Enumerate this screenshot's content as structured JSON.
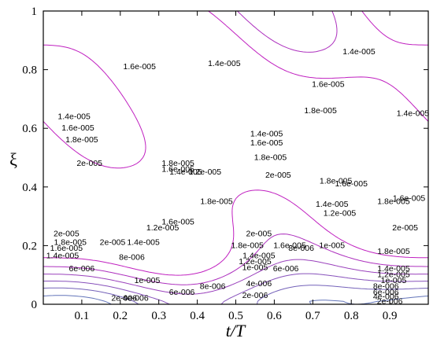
{
  "chart_data": {
    "type": "contour",
    "title": "",
    "xlabel": "t/T",
    "ylabel": "ξ",
    "xlim": [
      0,
      1
    ],
    "ylim": [
      0,
      1
    ],
    "x_ticks": [
      "0.1",
      "0.2",
      "0.3",
      "0.4",
      "0.5",
      "0.6",
      "0.7",
      "0.8",
      "0.9"
    ],
    "x_tick_values": [
      0.1,
      0.2,
      0.3,
      0.4,
      0.5,
      0.6,
      0.7,
      0.8,
      0.9
    ],
    "y_ticks": [
      "0",
      "0.2",
      "0.4",
      "0.6",
      "0.8",
      "1"
    ],
    "y_tick_values": [
      0,
      0.2,
      0.4,
      0.6,
      0.8,
      1
    ],
    "colors": {
      "high": "#c020c0",
      "mid": "#6a6ab8",
      "low": "#20c0c0",
      "frame": "#000000"
    },
    "contour_labels": [
      {
        "text": "1.6e-005",
        "x": 0.25,
        "y": 0.81
      },
      {
        "text": "1.4e-005",
        "x": 0.47,
        "y": 0.82
      },
      {
        "text": "1.4e-005",
        "x": 0.82,
        "y": 0.86
      },
      {
        "text": "1.4e-005",
        "x": 0.08,
        "y": 0.64
      },
      {
        "text": "1.6e-005",
        "x": 0.09,
        "y": 0.6
      },
      {
        "text": "1.8e-005",
        "x": 0.1,
        "y": 0.56
      },
      {
        "text": "2e-005",
        "x": 0.12,
        "y": 0.48
      },
      {
        "text": "1.6e-005",
        "x": 0.74,
        "y": 0.75
      },
      {
        "text": "1.8e-005",
        "x": 0.72,
        "y": 0.66
      },
      {
        "text": "1.4e-005",
        "x": 0.96,
        "y": 0.65
      },
      {
        "text": "1.4e-005",
        "x": 0.58,
        "y": 0.58
      },
      {
        "text": "1.6e-005",
        "x": 0.58,
        "y": 0.55
      },
      {
        "text": "1.8e-005",
        "x": 0.59,
        "y": 0.5
      },
      {
        "text": "2e-005",
        "x": 0.61,
        "y": 0.44
      },
      {
        "text": "1.8e-005",
        "x": 0.35,
        "y": 0.48
      },
      {
        "text": "1.6e-005",
        "x": 0.35,
        "y": 0.46
      },
      {
        "text": "1.4e-005",
        "x": 0.37,
        "y": 0.45
      },
      {
        "text": "1.2e-005",
        "x": 0.42,
        "y": 0.45
      },
      {
        "text": "1.8e-005",
        "x": 0.76,
        "y": 0.42
      },
      {
        "text": "1.6e-005",
        "x": 0.8,
        "y": 0.41
      },
      {
        "text": "1.8e-005",
        "x": 0.45,
        "y": 0.35
      },
      {
        "text": "1.4e-005",
        "x": 0.75,
        "y": 0.34
      },
      {
        "text": "1.2e-005",
        "x": 0.77,
        "y": 0.31
      },
      {
        "text": "1.8e-005",
        "x": 0.91,
        "y": 0.35
      },
      {
        "text": "1.6e-005",
        "x": 0.95,
        "y": 0.36
      },
      {
        "text": "2e-005",
        "x": 0.94,
        "y": 0.26
      },
      {
        "text": "2e-005",
        "x": 0.06,
        "y": 0.24
      },
      {
        "text": "1.8e-005",
        "x": 0.07,
        "y": 0.21
      },
      {
        "text": "1.6e-005",
        "x": 0.06,
        "y": 0.19
      },
      {
        "text": "1.4e-005",
        "x": 0.05,
        "y": 0.165
      },
      {
        "text": "2e-005",
        "x": 0.18,
        "y": 0.21
      },
      {
        "text": "8e-006",
        "x": 0.23,
        "y": 0.16
      },
      {
        "text": "1.4e-005",
        "x": 0.26,
        "y": 0.21
      },
      {
        "text": "1.2e-005",
        "x": 0.31,
        "y": 0.26
      },
      {
        "text": "1.6e-005",
        "x": 0.35,
        "y": 0.28
      },
      {
        "text": "1e-005",
        "x": 0.27,
        "y": 0.08
      },
      {
        "text": "2e-005",
        "x": 0.56,
        "y": 0.24
      },
      {
        "text": "1.8e-005",
        "x": 0.53,
        "y": 0.2
      },
      {
        "text": "1.6e-005",
        "x": 0.64,
        "y": 0.2
      },
      {
        "text": "1.4e-005",
        "x": 0.56,
        "y": 0.165
      },
      {
        "text": "1.2e-005",
        "x": 0.55,
        "y": 0.145
      },
      {
        "text": "1e-005",
        "x": 0.55,
        "y": 0.125
      },
      {
        "text": "6e-006",
        "x": 0.63,
        "y": 0.12
      },
      {
        "text": "8e-006",
        "x": 0.67,
        "y": 0.19
      },
      {
        "text": "1e-005",
        "x": 0.75,
        "y": 0.2
      },
      {
        "text": "1.8e-005",
        "x": 0.91,
        "y": 0.18
      },
      {
        "text": "6e-006",
        "x": 0.1,
        "y": 0.12
      },
      {
        "text": "8e-006",
        "x": 0.44,
        "y": 0.06
      },
      {
        "text": "6e-006",
        "x": 0.36,
        "y": 0.04
      },
      {
        "text": "4e-006",
        "x": 0.56,
        "y": 0.07
      },
      {
        "text": "2e-006",
        "x": 0.55,
        "y": 0.03
      },
      {
        "text": "2e-006",
        "x": 0.21,
        "y": 0.02
      },
      {
        "text": "4e-006",
        "x": 0.24,
        "y": 0.02
      },
      {
        "text": "1.4e-005",
        "x": 0.91,
        "y": 0.12
      },
      {
        "text": "1.2e-005",
        "x": 0.91,
        "y": 0.1
      },
      {
        "text": "1e-005",
        "x": 0.91,
        "y": 0.08
      },
      {
        "text": "8e-006",
        "x": 0.89,
        "y": 0.06
      },
      {
        "text": "6e-006",
        "x": 0.89,
        "y": 0.04
      },
      {
        "text": "4e-006",
        "x": 0.89,
        "y": 0.025
      },
      {
        "text": "2e-006",
        "x": 0.9,
        "y": 0.01
      }
    ]
  }
}
